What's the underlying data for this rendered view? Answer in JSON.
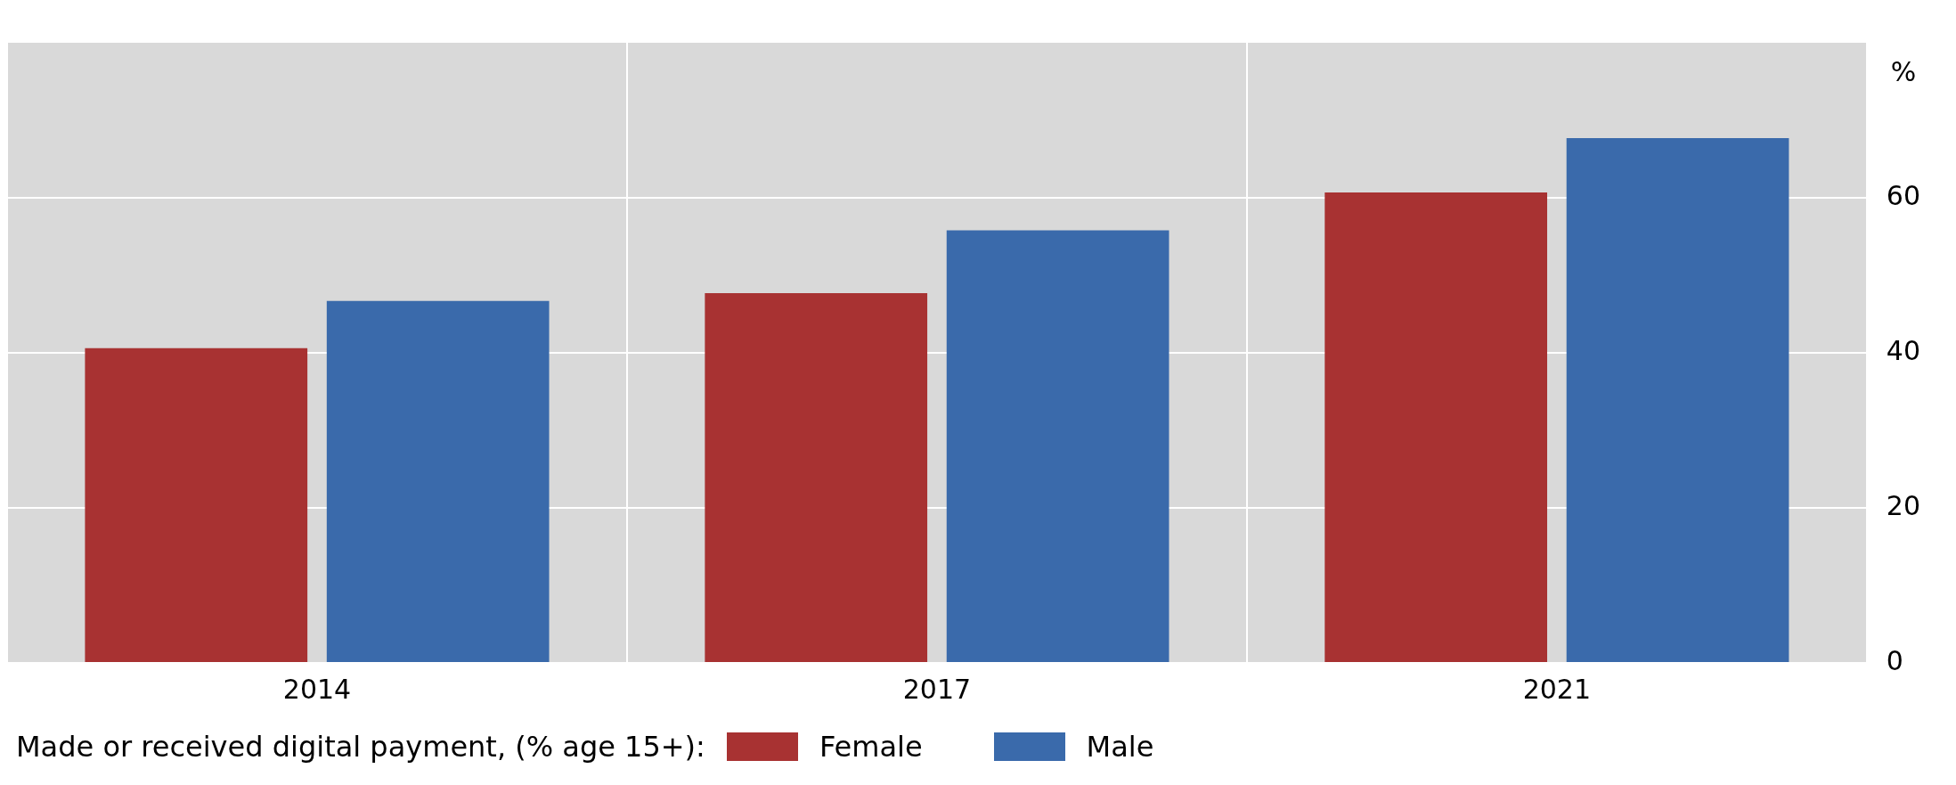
{
  "chart_data": {
    "type": "bar",
    "ylabel": "%",
    "legend_title": "Made or received digital payment, (% age 15+):",
    "categories": [
      "2014",
      "2017",
      "2021"
    ],
    "series": [
      {
        "name": "Female",
        "color": "#a83232",
        "values": [
          40.6,
          47.7,
          60.7
        ]
      },
      {
        "name": "Male",
        "color": "#3a6aab",
        "values": [
          46.7,
          55.8,
          67.7
        ]
      }
    ],
    "ylim": [
      0,
      80
    ],
    "yticks": [
      0,
      20,
      40,
      60
    ],
    "grid": true,
    "legend": "bottom"
  }
}
